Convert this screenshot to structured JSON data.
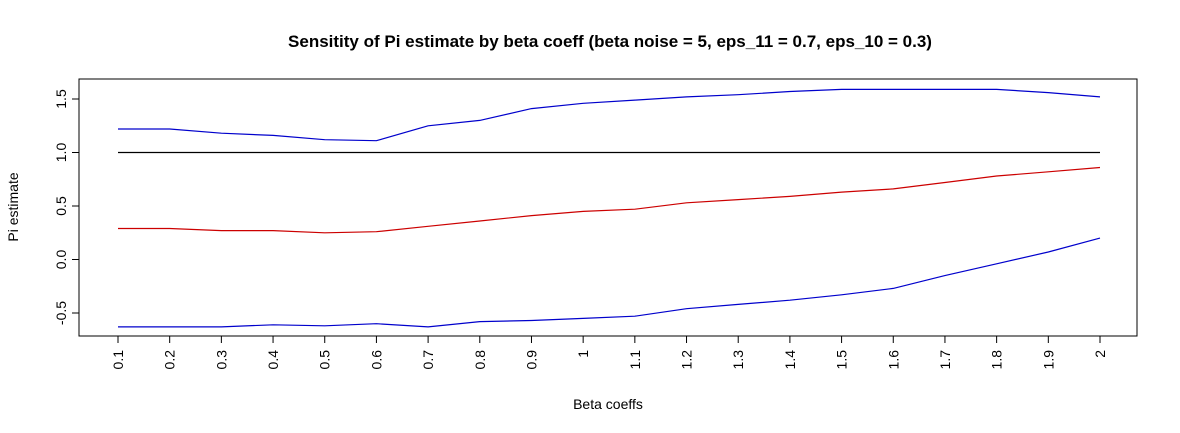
{
  "chart_data": {
    "type": "line",
    "title": "Sensitity of Pi estimate by beta coeff (beta noise = 5, eps_11 = 0.7, eps_10 = 0.3)",
    "xlabel": "Beta coeffs",
    "ylabel": "Pi estimate",
    "x": [
      0.1,
      0.2,
      0.3,
      0.4,
      0.5,
      0.6,
      0.7,
      0.8,
      0.9,
      1.0,
      1.1,
      1.2,
      1.3,
      1.4,
      1.5,
      1.6,
      1.7,
      1.8,
      1.9,
      2.0
    ],
    "x_tick_labels": [
      "0.1",
      "0.2",
      "0.3",
      "0.4",
      "0.5",
      "0.6",
      "0.7",
      "0.8",
      "0.9",
      "1",
      "1.1",
      "1.2",
      "1.3",
      "1.4",
      "1.5",
      "1.6",
      "1.7",
      "1.8",
      "1.9",
      "2"
    ],
    "y_ticks": [
      -0.5,
      0.0,
      0.5,
      1.0,
      1.5
    ],
    "y_tick_labels": [
      "-0.5",
      "0.0",
      "0.5",
      "1.0",
      "1.5"
    ],
    "grid": false,
    "legend": "none",
    "series": [
      {
        "color": "#0000cc",
        "values": [
          1.22,
          1.22,
          1.18,
          1.16,
          1.12,
          1.11,
          1.25,
          1.3,
          1.41,
          1.46,
          1.49,
          1.52,
          1.54,
          1.57,
          1.59,
          1.59,
          1.59,
          1.59,
          1.56,
          1.52
        ]
      },
      {
        "color": "#000000",
        "values": [
          1.0,
          1.0,
          1.0,
          1.0,
          1.0,
          1.0,
          1.0,
          1.0,
          1.0,
          1.0,
          1.0,
          1.0,
          1.0,
          1.0,
          1.0,
          1.0,
          1.0,
          1.0,
          1.0,
          1.0
        ]
      },
      {
        "color": "#cc0000",
        "values": [
          0.29,
          0.29,
          0.27,
          0.27,
          0.25,
          0.26,
          0.31,
          0.36,
          0.41,
          0.45,
          0.47,
          0.53,
          0.56,
          0.59,
          0.63,
          0.66,
          0.72,
          0.78,
          0.82,
          0.86
        ]
      },
      {
        "color": "#0000cc",
        "values": [
          -0.63,
          -0.63,
          -0.63,
          -0.61,
          -0.62,
          -0.6,
          -0.63,
          -0.58,
          -0.57,
          -0.55,
          -0.53,
          -0.46,
          -0.42,
          -0.38,
          -0.33,
          -0.27,
          -0.15,
          -0.04,
          0.07,
          0.2
        ]
      }
    ]
  }
}
